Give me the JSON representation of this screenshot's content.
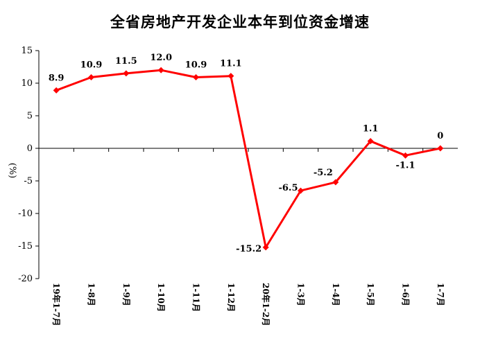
{
  "chart_data": {
    "type": "line",
    "title": "全省房地产开发企业本年到位资金增速",
    "ylabel": "(%)",
    "xlabel": "",
    "ylim": [
      -20,
      15
    ],
    "yticks": [
      15,
      10,
      5,
      0,
      -5,
      -10,
      -15,
      -20
    ],
    "categories": [
      "19年1-7月",
      "1-8月",
      "1-9月",
      "1-10月",
      "1-11月",
      "1-12月",
      "20年1-2月",
      "1-3月",
      "1-4月",
      "1-5月",
      "1-6月",
      "1-7月"
    ],
    "series": [
      {
        "values": [
          8.9,
          10.9,
          11.5,
          12.0,
          10.9,
          11.1,
          -15.2,
          -6.5,
          -5.2,
          1.1,
          -1.1,
          0
        ],
        "labels": [
          "8.9",
          "10.9",
          "11.5",
          "12.0",
          "10.9",
          "11.1",
          "-15.2",
          "-6.5",
          "-5.2",
          "1.1",
          "-1.1",
          "0"
        ],
        "color": "#ff0000"
      }
    ],
    "grid": false,
    "legend": "none"
  }
}
